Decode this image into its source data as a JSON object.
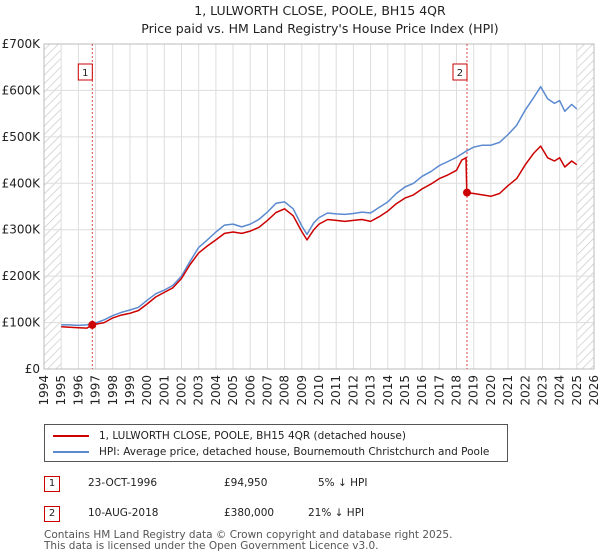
{
  "chart_data": {
    "type": "line",
    "title": "1, LULWORTH CLOSE, POOLE, BH15 4QR",
    "subtitle": "Price paid vs. HM Land Registry's House Price Index (HPI)",
    "xlim": [
      1994,
      2026
    ],
    "ylim": [
      0,
      700000
    ],
    "x_ticks": [
      "1994",
      "1995",
      "1996",
      "1997",
      "1998",
      "1999",
      "2000",
      "2001",
      "2002",
      "2003",
      "2004",
      "2005",
      "2006",
      "2007",
      "2008",
      "2009",
      "2010",
      "2011",
      "2012",
      "2013",
      "2014",
      "2015",
      "2016",
      "2017",
      "2018",
      "2019",
      "2020",
      "2021",
      "2022",
      "2023",
      "2024",
      "2025",
      "2026"
    ],
    "y_ticks": [
      {
        "value": 0,
        "label": "£0"
      },
      {
        "value": 100000,
        "label": "£100K"
      },
      {
        "value": 200000,
        "label": "£200K"
      },
      {
        "value": 300000,
        "label": "£300K"
      },
      {
        "value": 400000,
        "label": "£400K"
      },
      {
        "value": 500000,
        "label": "£500K"
      },
      {
        "value": 600000,
        "label": "£600K"
      },
      {
        "value": 700000,
        "label": "£700K"
      }
    ],
    "hatch_before": 1995,
    "hatch_after": 2025,
    "series": [
      {
        "name": "1, LULWORTH CLOSE, POOLE, BH15 4QR (detached house)",
        "color": "#cc0000",
        "points": [
          [
            1995.0,
            91000
          ],
          [
            1995.5,
            90000
          ],
          [
            1996.0,
            89000
          ],
          [
            1996.5,
            88000
          ],
          [
            1996.8,
            94950
          ],
          [
            1997.5,
            100000
          ],
          [
            1998.0,
            110000
          ],
          [
            1998.5,
            116000
          ],
          [
            1999.0,
            120000
          ],
          [
            1999.5,
            126000
          ],
          [
            2000.0,
            140000
          ],
          [
            2000.5,
            155000
          ],
          [
            2001.0,
            165000
          ],
          [
            2001.5,
            175000
          ],
          [
            2002.0,
            195000
          ],
          [
            2002.5,
            225000
          ],
          [
            2003.0,
            250000
          ],
          [
            2003.5,
            265000
          ],
          [
            2004.0,
            278000
          ],
          [
            2004.5,
            292000
          ],
          [
            2005.0,
            295000
          ],
          [
            2005.5,
            292000
          ],
          [
            2006.0,
            297000
          ],
          [
            2006.5,
            305000
          ],
          [
            2007.0,
            320000
          ],
          [
            2007.5,
            337000
          ],
          [
            2008.0,
            345000
          ],
          [
            2008.5,
            330000
          ],
          [
            2009.0,
            296000
          ],
          [
            2009.3,
            278000
          ],
          [
            2009.7,
            300000
          ],
          [
            2010.0,
            312000
          ],
          [
            2010.5,
            322000
          ],
          [
            2011.0,
            320000
          ],
          [
            2011.5,
            318000
          ],
          [
            2012.0,
            320000
          ],
          [
            2012.5,
            322000
          ],
          [
            2013.0,
            318000
          ],
          [
            2013.5,
            328000
          ],
          [
            2014.0,
            340000
          ],
          [
            2014.5,
            356000
          ],
          [
            2015.0,
            368000
          ],
          [
            2015.5,
            375000
          ],
          [
            2016.0,
            388000
          ],
          [
            2016.5,
            398000
          ],
          [
            2017.0,
            410000
          ],
          [
            2017.5,
            418000
          ],
          [
            2018.0,
            428000
          ],
          [
            2018.3,
            450000
          ],
          [
            2018.55,
            455000
          ],
          [
            2018.6,
            380000
          ],
          [
            2019.0,
            378000
          ],
          [
            2019.5,
            375000
          ],
          [
            2020.0,
            372000
          ],
          [
            2020.5,
            378000
          ],
          [
            2021.0,
            395000
          ],
          [
            2021.5,
            410000
          ],
          [
            2022.0,
            440000
          ],
          [
            2022.5,
            465000
          ],
          [
            2022.9,
            480000
          ],
          [
            2023.3,
            455000
          ],
          [
            2023.7,
            448000
          ],
          [
            2024.0,
            455000
          ],
          [
            2024.3,
            435000
          ],
          [
            2024.7,
            448000
          ],
          [
            2025.0,
            440000
          ]
        ]
      },
      {
        "name": "HPI: Average price, detached house, Bournemouth Christchurch and Poole",
        "color": "#5b8ad0",
        "points": [
          [
            1995.0,
            95000
          ],
          [
            1995.5,
            95000
          ],
          [
            1996.0,
            94000
          ],
          [
            1996.5,
            95000
          ],
          [
            1997.0,
            99000
          ],
          [
            1997.5,
            106000
          ],
          [
            1998.0,
            115000
          ],
          [
            1998.5,
            122000
          ],
          [
            1999.0,
            127000
          ],
          [
            1999.5,
            133000
          ],
          [
            2000.0,
            148000
          ],
          [
            2000.5,
            162000
          ],
          [
            2001.0,
            170000
          ],
          [
            2001.5,
            180000
          ],
          [
            2002.0,
            200000
          ],
          [
            2002.5,
            232000
          ],
          [
            2003.0,
            262000
          ],
          [
            2003.5,
            278000
          ],
          [
            2004.0,
            295000
          ],
          [
            2004.5,
            310000
          ],
          [
            2005.0,
            312000
          ],
          [
            2005.5,
            306000
          ],
          [
            2006.0,
            312000
          ],
          [
            2006.5,
            322000
          ],
          [
            2007.0,
            338000
          ],
          [
            2007.5,
            357000
          ],
          [
            2008.0,
            360000
          ],
          [
            2008.5,
            345000
          ],
          [
            2009.0,
            308000
          ],
          [
            2009.3,
            290000
          ],
          [
            2009.7,
            315000
          ],
          [
            2010.0,
            326000
          ],
          [
            2010.5,
            336000
          ],
          [
            2011.0,
            334000
          ],
          [
            2011.5,
            333000
          ],
          [
            2012.0,
            335000
          ],
          [
            2012.5,
            338000
          ],
          [
            2013.0,
            336000
          ],
          [
            2013.5,
            348000
          ],
          [
            2014.0,
            360000
          ],
          [
            2014.5,
            378000
          ],
          [
            2015.0,
            392000
          ],
          [
            2015.5,
            400000
          ],
          [
            2016.0,
            415000
          ],
          [
            2016.5,
            425000
          ],
          [
            2017.0,
            438000
          ],
          [
            2017.5,
            447000
          ],
          [
            2018.0,
            456000
          ],
          [
            2018.6,
            470000
          ],
          [
            2019.0,
            478000
          ],
          [
            2019.5,
            482000
          ],
          [
            2020.0,
            482000
          ],
          [
            2020.5,
            488000
          ],
          [
            2021.0,
            505000
          ],
          [
            2021.5,
            525000
          ],
          [
            2022.0,
            558000
          ],
          [
            2022.5,
            585000
          ],
          [
            2022.9,
            608000
          ],
          [
            2023.3,
            582000
          ],
          [
            2023.7,
            572000
          ],
          [
            2024.0,
            578000
          ],
          [
            2024.3,
            555000
          ],
          [
            2024.7,
            570000
          ],
          [
            2025.0,
            560000
          ]
        ]
      }
    ],
    "transactions": [
      {
        "id": "1",
        "date": "23-OCT-1996",
        "x": 1996.81,
        "price": 94950,
        "price_label": "£94,950",
        "hpi": "5% ↓ HPI"
      },
      {
        "id": "2",
        "date": "10-AUG-2018",
        "x": 2018.61,
        "price": 380000,
        "price_label": "£380,000",
        "hpi": "21% ↓ HPI"
      }
    ]
  },
  "footer": {
    "line1": "Contains HM Land Registry data © Crown copyright and database right 2025.",
    "line2": "This data is licensed under the Open Government Licence v3.0."
  },
  "colors": {
    "red": "#cc0000",
    "blue": "#5b8ad0",
    "grid": "#dddddd",
    "hatch": "#cccccc"
  }
}
